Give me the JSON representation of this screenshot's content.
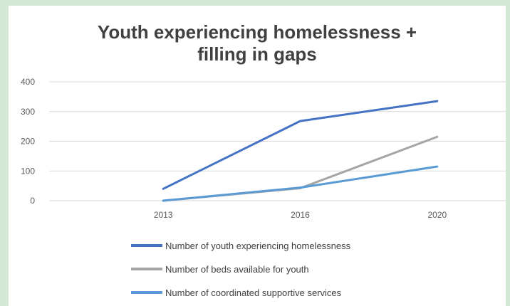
{
  "chart_data": {
    "type": "line",
    "title": [
      "Youth experiencing homelessness +",
      "filling in gaps"
    ],
    "categories": [
      "2013",
      "2016",
      "2020"
    ],
    "ylim": [
      0,
      400
    ],
    "yticks": [
      0,
      100,
      200,
      300,
      400
    ],
    "grid": true,
    "legend_position": "bottom",
    "series": [
      {
        "name": "Number of youth experiencing homelessness",
        "values": [
          40,
          268,
          335
        ],
        "color": "#4472c4"
      },
      {
        "name": "Number of beds available for youth",
        "values": [
          0,
          42,
          215
        ],
        "color": "#a5a5a5"
      },
      {
        "name": "Number of coordinated supportive services",
        "values": [
          0,
          44,
          115
        ],
        "color": "#5b9bd5"
      }
    ]
  }
}
